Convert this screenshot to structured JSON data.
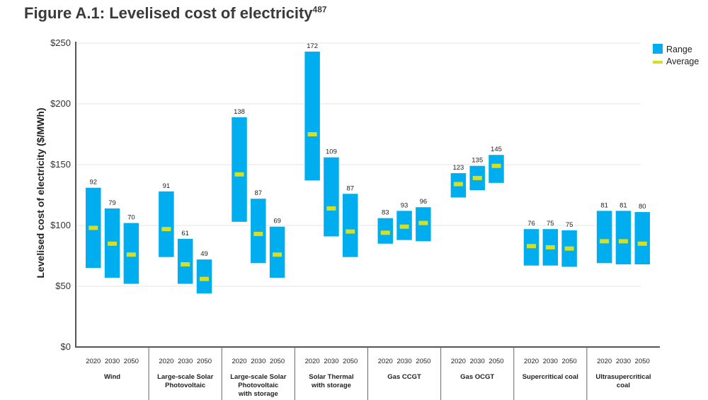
{
  "title": {
    "main": "Figure A.1: Levelised cost of electricity",
    "superscript": "487"
  },
  "chart_data": {
    "type": "bar",
    "title": "Figure A.1: Levelised cost of electricity",
    "ylabel": "Levelised cost of electricity ($/MWh)",
    "xlabel": "",
    "ylim": [
      0,
      250
    ],
    "yticks": [
      0,
      50,
      100,
      150,
      200,
      250
    ],
    "ytick_labels": [
      "$0",
      "$50",
      "$100",
      "$150",
      "$200",
      "$250"
    ],
    "grid": true,
    "legend": {
      "position": "top-right",
      "range_label": "Range",
      "average_label": "Average"
    },
    "colors": {
      "range": "#00aeef",
      "average": "#d7df23",
      "axis": "#555555",
      "grid": "#e6e6e6"
    },
    "groups": [
      {
        "name": "Wind",
        "bars": [
          {
            "year": "2020",
            "low": 65,
            "high": 131,
            "avg": 98,
            "label": "92"
          },
          {
            "year": "2030",
            "low": 57,
            "high": 114,
            "avg": 85,
            "label": "79"
          },
          {
            "year": "2050",
            "low": 52,
            "high": 102,
            "avg": 76,
            "label": "70"
          }
        ]
      },
      {
        "name": "Large-scale Solar\nPhotovoltaic",
        "bars": [
          {
            "year": "2020",
            "low": 74,
            "high": 128,
            "avg": 97,
            "label": "91"
          },
          {
            "year": "2030",
            "low": 52,
            "high": 89,
            "avg": 68,
            "label": "61"
          },
          {
            "year": "2050",
            "low": 44,
            "high": 72,
            "avg": 56,
            "label": "49"
          }
        ]
      },
      {
        "name": "Large-scale Solar\nPhotovoltaic\nwith storage",
        "bars": [
          {
            "year": "2020",
            "low": 103,
            "high": 189,
            "avg": 142,
            "label": "138"
          },
          {
            "year": "2030",
            "low": 69,
            "high": 122,
            "avg": 93,
            "label": "87"
          },
          {
            "year": "2050",
            "low": 57,
            "high": 99,
            "avg": 76,
            "label": "69"
          }
        ]
      },
      {
        "name": "Solar Thermal\nwith storage",
        "bars": [
          {
            "year": "2020",
            "low": 137,
            "high": 243,
            "avg": 175,
            "label": "172"
          },
          {
            "year": "2030",
            "low": 91,
            "high": 156,
            "avg": 114,
            "label": "109"
          },
          {
            "year": "2050",
            "low": 74,
            "high": 126,
            "avg": 95,
            "label": "87"
          }
        ]
      },
      {
        "name": "Gas CCGT",
        "bars": [
          {
            "year": "2020",
            "low": 85,
            "high": 106,
            "avg": 94,
            "label": "83"
          },
          {
            "year": "2030",
            "low": 88,
            "high": 112,
            "avg": 99,
            "label": "93"
          },
          {
            "year": "2050",
            "low": 87,
            "high": 115,
            "avg": 102,
            "label": "96"
          }
        ]
      },
      {
        "name": "Gas OCGT",
        "bars": [
          {
            "year": "2020",
            "low": 123,
            "high": 143,
            "avg": 134,
            "label": "123"
          },
          {
            "year": "2030",
            "low": 129,
            "high": 149,
            "avg": 139,
            "label": "135"
          },
          {
            "year": "2050",
            "low": 135,
            "high": 158,
            "avg": 149,
            "label": "145"
          }
        ]
      },
      {
        "name": "Supercritical coal",
        "bars": [
          {
            "year": "2020",
            "low": 67,
            "high": 97,
            "avg": 83,
            "label": "76"
          },
          {
            "year": "2030",
            "low": 67,
            "high": 97,
            "avg": 82,
            "label": "75"
          },
          {
            "year": "2050",
            "low": 66,
            "high": 96,
            "avg": 81,
            "label": "75"
          }
        ]
      },
      {
        "name": "Ultrasupercritical\ncoal",
        "bars": [
          {
            "year": "2020",
            "low": 69,
            "high": 112,
            "avg": 87,
            "label": "81"
          },
          {
            "year": "2030",
            "low": 68,
            "high": 112,
            "avg": 87,
            "label": "81"
          },
          {
            "year": "2050",
            "low": 68,
            "high": 111,
            "avg": 85,
            "label": "80"
          }
        ]
      }
    ]
  }
}
